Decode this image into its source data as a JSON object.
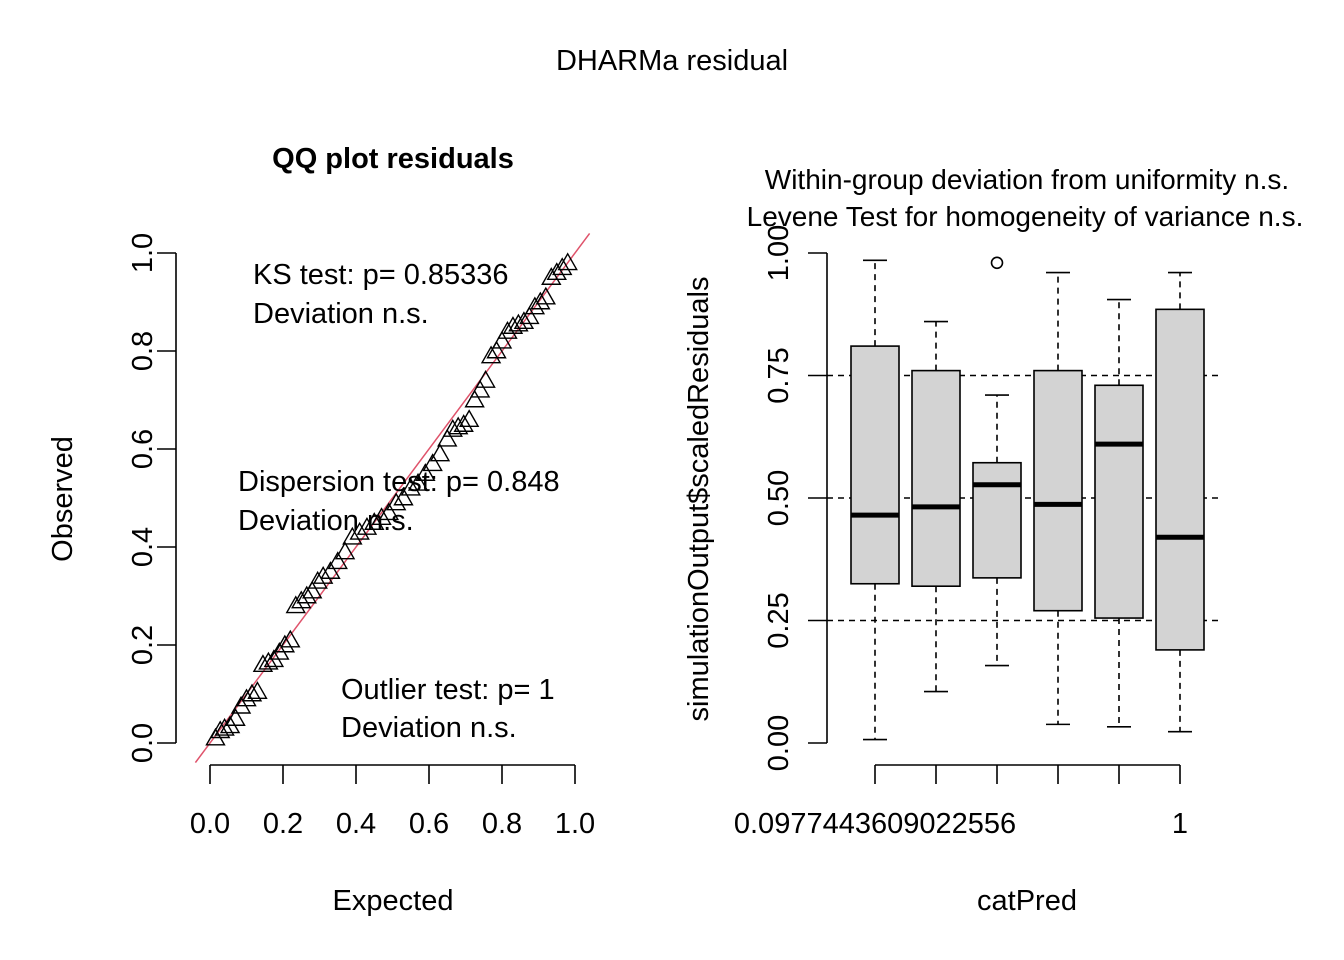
{
  "figure": {
    "title": "DHARMa residual"
  },
  "chart_data": [
    {
      "type": "scatter",
      "title": "QQ plot residuals",
      "xlabel": "Expected",
      "ylabel": "Observed",
      "xlim": [
        0.0,
        1.0
      ],
      "ylim": [
        0.0,
        1.0
      ],
      "xticks": [
        "0.0",
        "0.2",
        "0.4",
        "0.6",
        "0.8",
        "1.0"
      ],
      "yticks": [
        "0.0",
        "0.2",
        "0.4",
        "0.6",
        "0.8",
        "1.0"
      ],
      "grid": false,
      "marker": "triangle-open",
      "reference_line": {
        "color": "#DF536B"
      },
      "annotations": {
        "ks_line1": "KS test: p= 0.85336",
        "ks_line2": "Deviation  n.s.",
        "disp_line1": "Dispersion test: p= 0.848",
        "disp_line2": "Deviation  n.s.",
        "outlier_line1": "Outlier test: p= 1",
        "outlier_line2": "Deviation  n.s."
      },
      "series": [
        {
          "x": [
            0.015,
            0.028,
            0.04,
            0.055,
            0.07,
            0.085,
            0.1,
            0.115,
            0.13,
            0.145,
            0.16,
            0.175,
            0.19,
            0.205,
            0.22,
            0.235,
            0.25,
            0.265,
            0.28,
            0.295,
            0.31,
            0.33,
            0.35,
            0.37,
            0.39,
            0.41,
            0.43,
            0.45,
            0.47,
            0.49,
            0.51,
            0.53,
            0.55,
            0.57,
            0.59,
            0.61,
            0.63,
            0.65,
            0.665,
            0.68,
            0.695,
            0.71,
            0.725,
            0.74,
            0.755,
            0.77,
            0.785,
            0.8,
            0.815,
            0.83,
            0.845,
            0.86,
            0.875,
            0.89,
            0.905,
            0.92,
            0.935,
            0.95,
            0.965,
            0.98
          ],
          "y": [
            0.01,
            0.025,
            0.03,
            0.035,
            0.05,
            0.075,
            0.09,
            0.1,
            0.105,
            0.16,
            0.165,
            0.17,
            0.185,
            0.2,
            0.21,
            0.28,
            0.29,
            0.3,
            0.31,
            0.33,
            0.34,
            0.35,
            0.37,
            0.39,
            0.42,
            0.43,
            0.44,
            0.45,
            0.46,
            0.47,
            0.49,
            0.5,
            0.52,
            0.53,
            0.55,
            0.57,
            0.59,
            0.62,
            0.64,
            0.645,
            0.65,
            0.66,
            0.7,
            0.72,
            0.74,
            0.79,
            0.8,
            0.82,
            0.84,
            0.85,
            0.855,
            0.86,
            0.87,
            0.89,
            0.9,
            0.91,
            0.95,
            0.96,
            0.97,
            0.98
          ]
        }
      ]
    },
    {
      "type": "box",
      "title_line1": "Within-group deviation from uniformity n.s.",
      "title_line2": "Levene Test for homogeneity of variance n.s.",
      "xlabel": "catPred",
      "ylabel": "simulationOutput$scaledResiduals",
      "ylim": [
        0.0,
        1.0
      ],
      "yticks": [
        "0.00",
        "0.25",
        "0.50",
        "0.75",
        "1.00"
      ],
      "xticklabels": [
        "0.0977443609022556",
        "1"
      ],
      "reference_lines": [
        0.25,
        0.5,
        0.75
      ],
      "boxes": [
        {
          "min": 0.007,
          "q1": 0.325,
          "median": 0.465,
          "q3": 0.81,
          "max": 0.985,
          "outliers": []
        },
        {
          "min": 0.105,
          "q1": 0.32,
          "median": 0.482,
          "q3": 0.76,
          "max": 0.86,
          "outliers": []
        },
        {
          "min": 0.158,
          "q1": 0.337,
          "median": 0.527,
          "q3": 0.572,
          "max": 0.71,
          "outliers": [
            0.98
          ]
        },
        {
          "min": 0.038,
          "q1": 0.27,
          "median": 0.487,
          "q3": 0.76,
          "max": 0.96,
          "outliers": []
        },
        {
          "min": 0.033,
          "q1": 0.255,
          "median": 0.61,
          "q3": 0.73,
          "max": 0.905,
          "outliers": []
        },
        {
          "min": 0.023,
          "q1": 0.19,
          "median": 0.42,
          "q3": 0.885,
          "max": 0.96,
          "outliers": []
        }
      ]
    }
  ]
}
